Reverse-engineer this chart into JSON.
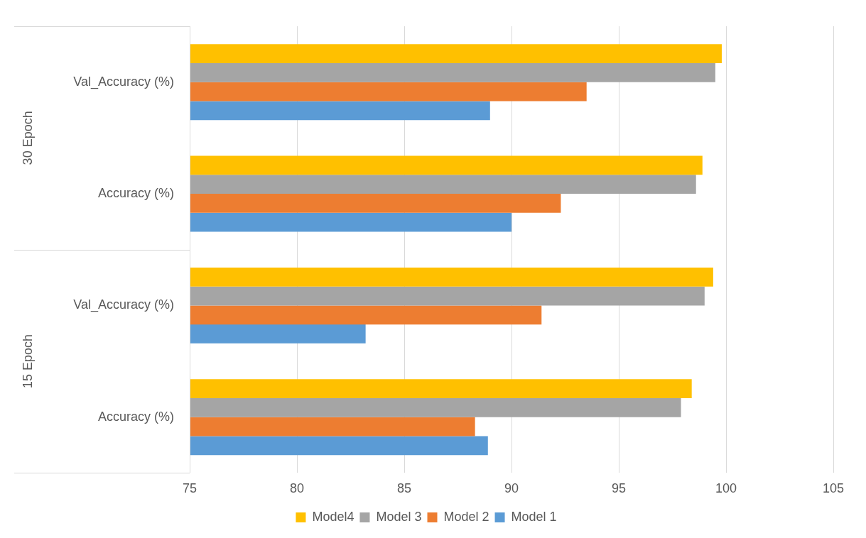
{
  "chart_data": {
    "type": "bar",
    "orientation": "horizontal",
    "categories": [
      "Val_Accuracy (%)",
      "Accuracy (%)",
      "Val_Accuracy (%)",
      "Accuracy (%)"
    ],
    "annotations": [
      "30 Epoch",
      "15 Epoch"
    ],
    "series": [
      {
        "name": "Model4",
        "color": "#ffc000",
        "values": [
          99.8,
          98.9,
          99.4,
          98.4
        ]
      },
      {
        "name": "Model 3",
        "color": "#a5a5a5",
        "values": [
          99.5,
          98.6,
          99.0,
          97.9
        ]
      },
      {
        "name": "Model 2",
        "color": "#ed7d31",
        "values": [
          93.5,
          92.3,
          91.4,
          88.3
        ]
      },
      {
        "name": "Model 1",
        "color": "#5b9bd5",
        "values": [
          89.0,
          90.0,
          83.2,
          88.9
        ]
      }
    ],
    "xlim": [
      75,
      105
    ],
    "xticks": [
      75,
      80,
      85,
      90,
      95,
      100,
      105
    ],
    "grid": "x",
    "legend": "bottom"
  }
}
